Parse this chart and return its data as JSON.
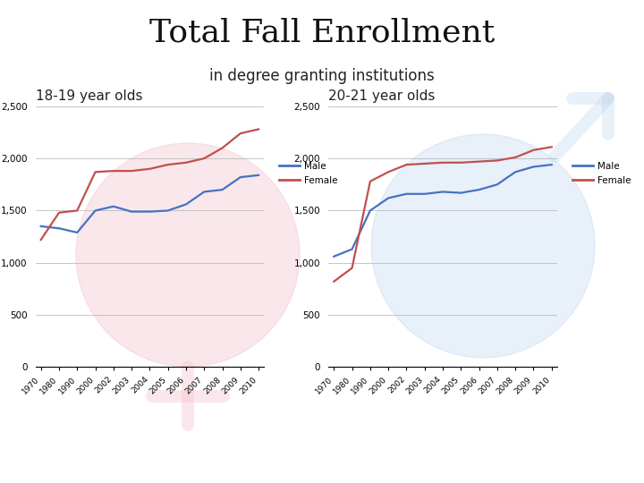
{
  "title_line1": "Total Fall Enrollment",
  "title_line2": "in degree granting institutions",
  "subtitle_left": "18-19 year olds",
  "subtitle_right": "20-21 year olds",
  "years": [
    "1970",
    "1980",
    "1990",
    "2000",
    "2002",
    "2003",
    "2004",
    "2005",
    "2006",
    "2007",
    "2008",
    "2009",
    "2010"
  ],
  "left_male": [
    1350,
    1330,
    1290,
    1500,
    1540,
    1490,
    1490,
    1500,
    1560,
    1680,
    1700,
    1820,
    1840
  ],
  "left_female": [
    1220,
    1480,
    1500,
    1870,
    1880,
    1880,
    1900,
    1940,
    1960,
    2000,
    2100,
    2240,
    2280
  ],
  "right_male": [
    1060,
    1130,
    1500,
    1620,
    1660,
    1660,
    1680,
    1670,
    1700,
    1750,
    1870,
    1920,
    1940
  ],
  "right_female": [
    820,
    950,
    1780,
    1870,
    1940,
    1950,
    1960,
    1960,
    1970,
    1980,
    2010,
    2080,
    2110
  ],
  "male_color": "#4472C4",
  "female_color": "#C0504D",
  "ylim": [
    0,
    2500
  ],
  "yticks": [
    0,
    500,
    1000,
    1500,
    2000,
    2500
  ],
  "bg_color": "#FFFFFF",
  "grid_color": "#BBBBBB",
  "title_fontsize": 26,
  "subtitle_fontsize": 11,
  "female_bg_color": "#F2C0CB",
  "male_bg_color": "#C5D8F0"
}
